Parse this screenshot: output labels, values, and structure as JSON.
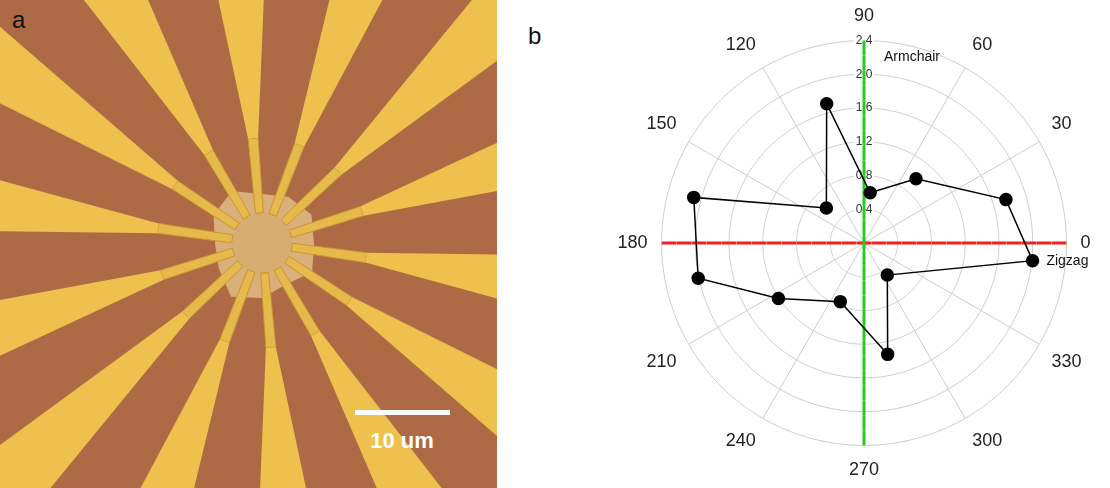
{
  "panel_labels": [
    "a",
    "b"
  ],
  "micrograph": {
    "scale_bar": "10 um"
  },
  "chart_data": {
    "type": "polar",
    "x": [
      17,
      51,
      83,
      105,
      137,
      165,
      192,
      213,
      248,
      282,
      306,
      354
    ],
    "values": [
      1.76,
      0.98,
      0.6,
      1.71,
      0.61,
      2.09,
      2.01,
      1.21,
      0.75,
      1.35,
      0.47,
      2.01
    ],
    "xlim": [
      0,
      360
    ],
    "xticks": [
      0,
      30,
      60,
      90,
      120,
      150,
      180,
      210,
      240,
      270,
      300,
      330
    ],
    "ylim": [
      0,
      2.4
    ],
    "yticks": [
      0.4,
      0.8,
      1.2,
      1.6,
      {
        "value": 2,
        "label": "2.0"
      },
      2.4
    ],
    "color": "#000000",
    "marker": "circle",
    "line_style": "solid",
    "grid": true,
    "annotations": [
      {
        "text": "Armchair",
        "angle": 90,
        "color": "#22cc22",
        "line_style": "dashed"
      },
      {
        "text": "Zigzag",
        "angle": 0,
        "color": "#ee2222",
        "line_style": "dashed"
      }
    ]
  }
}
